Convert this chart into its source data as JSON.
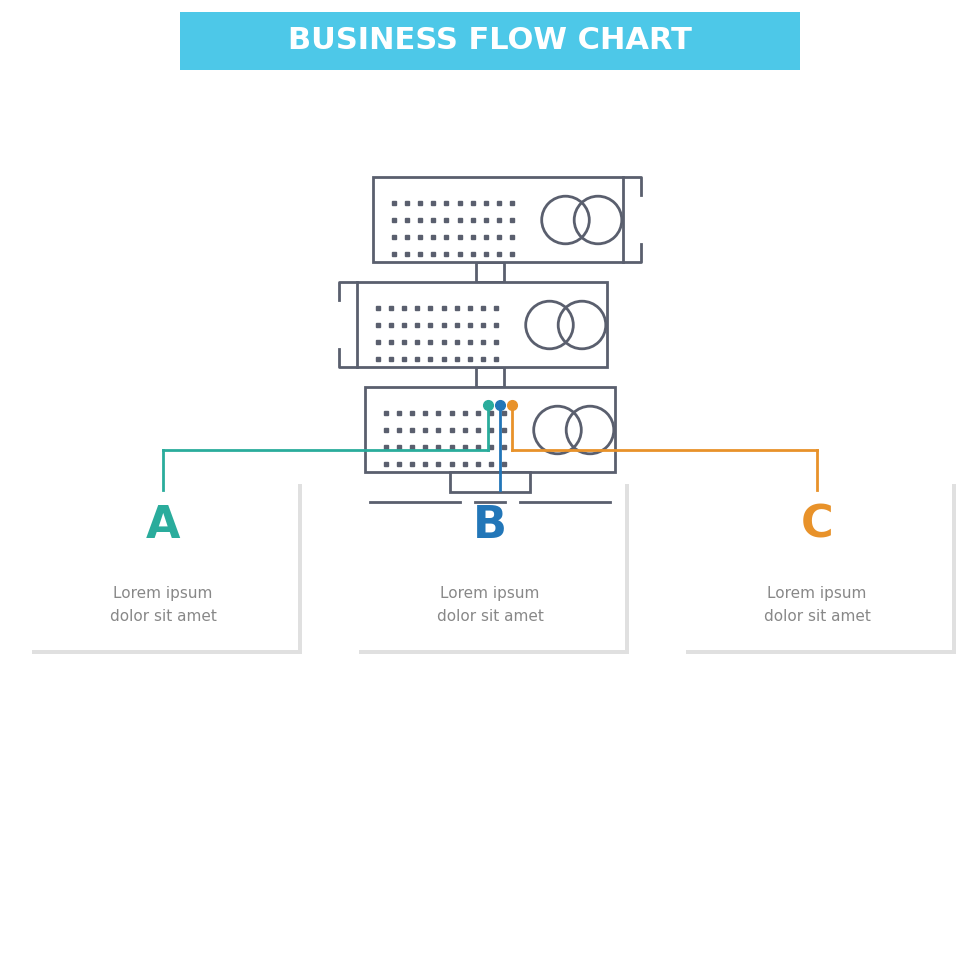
{
  "title": "BUSINESS FLOW CHART",
  "title_bg_color": "#4DC8E8",
  "title_text_color": "#FFFFFF",
  "title_fontsize": 22,
  "bg_color": "#FFFFFF",
  "icon_color": "#5a5f6e",
  "step_labels": [
    "A",
    "B",
    "C"
  ],
  "step_label_colors": [
    "#2aac9c",
    "#2276b8",
    "#e8922a"
  ],
  "step_line_colors": [
    "#2aac9c",
    "#2276b8",
    "#e8922a"
  ],
  "step_dot_colors": [
    "#2aac9c",
    "#2276b8",
    "#e8922a"
  ],
  "step_text": "Lorem ipsum\ndolor sit amet",
  "step_text_color": "#888888",
  "step_text_fontsize": 11,
  "step_label_fontsize": 32,
  "card_bg": "#f8f8f8",
  "card_shadow": "#dddddd"
}
